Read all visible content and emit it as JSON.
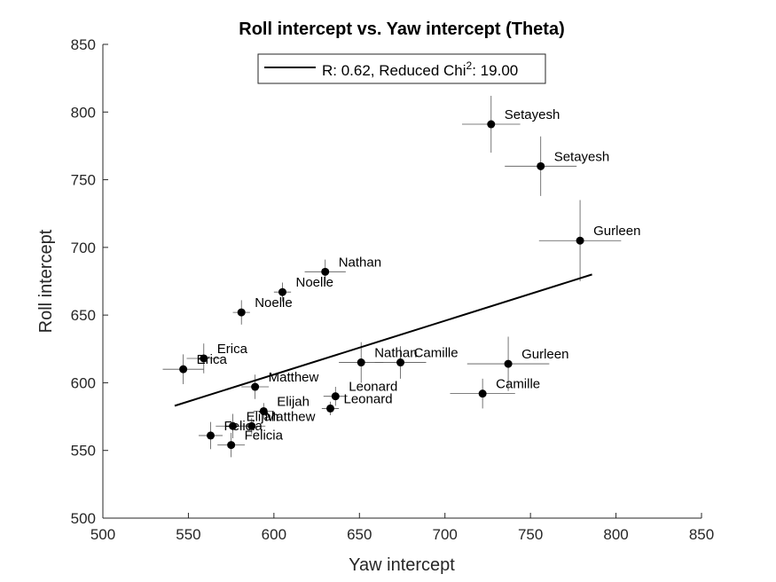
{
  "chart_data": {
    "type": "scatter",
    "title": "Roll intercept vs. Yaw intercept (Theta)",
    "xlabel": "Yaw intercept",
    "ylabel": "Roll intercept",
    "xlim": [
      500,
      850
    ],
    "ylim": [
      500,
      850
    ],
    "xticks": [
      500,
      550,
      600,
      650,
      700,
      750,
      800,
      850
    ],
    "yticks": [
      500,
      550,
      600,
      650,
      700,
      750,
      800,
      850
    ],
    "grid": false,
    "legend": {
      "placement": "top-center",
      "text_main": "R: 0.62, Reduced Chi",
      "text_sup": "2",
      "text_tail": ": 19.00"
    },
    "fit_line": {
      "x": [
        542,
        786
      ],
      "y": [
        583,
        680
      ]
    },
    "points": [
      {
        "label": "Setayesh",
        "x": 727,
        "y": 791,
        "xerr": 17,
        "yerr": 21
      },
      {
        "label": "Setayesh",
        "x": 756,
        "y": 760,
        "xerr": 21,
        "yerr": 22
      },
      {
        "label": "Gurleen",
        "x": 779,
        "y": 705,
        "xerr": 24,
        "yerr": 30
      },
      {
        "label": "Nathan",
        "x": 630,
        "y": 682,
        "xerr": 12,
        "yerr": 9
      },
      {
        "label": "Noelle",
        "x": 605,
        "y": 667,
        "xerr": 5,
        "yerr": 7
      },
      {
        "label": "Noelle",
        "x": 581,
        "y": 652,
        "xerr": 5,
        "yerr": 9
      },
      {
        "label": "Erica",
        "x": 559,
        "y": 618,
        "xerr": 10,
        "yerr": 11
      },
      {
        "label": "Erica",
        "x": 547,
        "y": 610,
        "xerr": 12,
        "yerr": 11
      },
      {
        "label": "Nathan",
        "x": 651,
        "y": 615,
        "xerr": 13,
        "yerr": 15
      },
      {
        "label": "Camille",
        "x": 674,
        "y": 615,
        "xerr": 15,
        "yerr": 12
      },
      {
        "label": "Gurleen",
        "x": 737,
        "y": 614,
        "xerr": 24,
        "yerr": 20
      },
      {
        "label": "Camille",
        "x": 722,
        "y": 592,
        "xerr": 19,
        "yerr": 11
      },
      {
        "label": "Matthew",
        "x": 589,
        "y": 597,
        "xerr": 8,
        "yerr": 9
      },
      {
        "label": "Leonard",
        "x": 636,
        "y": 590,
        "xerr": 7,
        "yerr": 7
      },
      {
        "label": "Leonard",
        "x": 633,
        "y": 581,
        "xerr": 5,
        "yerr": 5
      },
      {
        "label": "Elijah",
        "x": 594,
        "y": 579,
        "xerr": 6,
        "yerr": 6
      },
      {
        "label": "Matthew",
        "x": 587,
        "y": 568,
        "xerr": 8,
        "yerr": 6
      },
      {
        "label": "Elijah",
        "x": 576,
        "y": 568,
        "xerr": 10,
        "yerr": 9
      },
      {
        "label": "Felicia",
        "x": 563,
        "y": 561,
        "xerr": 7,
        "yerr": 10
      },
      {
        "label": "Felicia",
        "x": 575,
        "y": 554,
        "xerr": 8,
        "yerr": 9
      }
    ]
  }
}
